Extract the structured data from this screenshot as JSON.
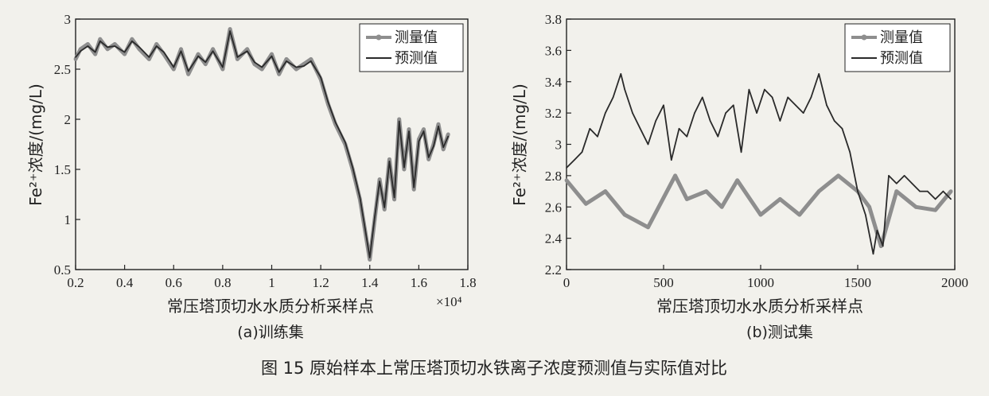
{
  "figure_caption": "图 15    原始样本上常压塔顶切水铁离子浓度预测值与实际值对比",
  "colors": {
    "measured": "#8e8e8e",
    "predicted": "#2a2a2a",
    "axis": "#222222"
  },
  "chart_data": [
    {
      "type": "line",
      "subtitle": "(a)训练集",
      "xlabel": "常压塔顶切水水质分析采样点",
      "ylabel": "Fe²⁺浓度/(mg/L)",
      "x_multiplier": "×10⁴",
      "xlim": [
        0.2,
        1.8
      ],
      "ylim": [
        0.5,
        3
      ],
      "xticks": [
        "0.2",
        "0.4",
        "0.6",
        "0.8",
        "1",
        "1.2",
        "1.4",
        "1.6",
        "1.8"
      ],
      "yticks": [
        "0.5",
        "1",
        "1.5",
        "2",
        "2.5",
        "3"
      ],
      "legend_position": "top-right",
      "series": [
        {
          "name": "测量值",
          "marker": "circle",
          "x": [
            0.2,
            0.22,
            0.25,
            0.28,
            0.3,
            0.33,
            0.36,
            0.4,
            0.43,
            0.46,
            0.5,
            0.53,
            0.56,
            0.6,
            0.63,
            0.66,
            0.7,
            0.73,
            0.76,
            0.8,
            0.83,
            0.86,
            0.9,
            0.93,
            0.96,
            1.0,
            1.03,
            1.06,
            1.1,
            1.13,
            1.16,
            1.2,
            1.23,
            1.26,
            1.3,
            1.33,
            1.36,
            1.38,
            1.4,
            1.42,
            1.44,
            1.46,
            1.48,
            1.5,
            1.52,
            1.54,
            1.56,
            1.58,
            1.6,
            1.62,
            1.64,
            1.66,
            1.68,
            1.7,
            1.72
          ],
          "y": [
            2.6,
            2.7,
            2.75,
            2.65,
            2.8,
            2.7,
            2.75,
            2.65,
            2.8,
            2.7,
            2.6,
            2.75,
            2.65,
            2.5,
            2.7,
            2.45,
            2.65,
            2.55,
            2.7,
            2.5,
            2.9,
            2.6,
            2.7,
            2.55,
            2.5,
            2.65,
            2.45,
            2.6,
            2.5,
            2.55,
            2.6,
            2.4,
            2.15,
            1.95,
            1.75,
            1.5,
            1.2,
            0.9,
            0.6,
            1.0,
            1.4,
            1.1,
            1.6,
            1.2,
            2.0,
            1.5,
            1.9,
            1.3,
            1.8,
            1.9,
            1.6,
            1.75,
            1.95,
            1.7,
            1.85
          ]
        },
        {
          "name": "预测值",
          "marker": "none",
          "x": [
            0.2,
            0.22,
            0.25,
            0.28,
            0.3,
            0.33,
            0.36,
            0.4,
            0.43,
            0.46,
            0.5,
            0.53,
            0.56,
            0.6,
            0.63,
            0.66,
            0.7,
            0.73,
            0.76,
            0.8,
            0.83,
            0.86,
            0.9,
            0.93,
            0.96,
            1.0,
            1.03,
            1.06,
            1.1,
            1.13,
            1.16,
            1.2,
            1.23,
            1.26,
            1.3,
            1.33,
            1.36,
            1.38,
            1.4,
            1.42,
            1.44,
            1.46,
            1.48,
            1.5,
            1.52,
            1.54,
            1.56,
            1.58,
            1.6,
            1.62,
            1.64,
            1.66,
            1.68,
            1.7,
            1.72
          ],
          "y": [
            2.62,
            2.68,
            2.73,
            2.67,
            2.78,
            2.72,
            2.73,
            2.67,
            2.78,
            2.72,
            2.62,
            2.73,
            2.67,
            2.52,
            2.68,
            2.48,
            2.63,
            2.57,
            2.68,
            2.52,
            2.88,
            2.62,
            2.68,
            2.57,
            2.52,
            2.63,
            2.47,
            2.58,
            2.52,
            2.53,
            2.58,
            2.42,
            2.17,
            1.97,
            1.77,
            1.52,
            1.22,
            0.92,
            0.62,
            1.02,
            1.38,
            1.12,
            1.58,
            1.22,
            1.98,
            1.52,
            1.88,
            1.32,
            1.78,
            1.88,
            1.62,
            1.73,
            1.93,
            1.72,
            1.83
          ]
        }
      ]
    },
    {
      "type": "line",
      "subtitle": "(b)测试集",
      "xlabel": "常压塔顶切水水质分析采样点",
      "ylabel": "Fe²⁺浓度/(mg/L)",
      "xlim": [
        0,
        2000
      ],
      "ylim": [
        2.2,
        3.8
      ],
      "xticks": [
        "0",
        "500",
        "1000",
        "1500",
        "2000"
      ],
      "yticks": [
        "2.2",
        "2.4",
        "2.6",
        "2.8",
        "3",
        "3.2",
        "3.4",
        "3.6",
        "3.8"
      ],
      "legend_position": "top-right",
      "series": [
        {
          "name": "测量值",
          "marker": "circle",
          "x": [
            0,
            100,
            200,
            300,
            420,
            560,
            620,
            720,
            800,
            880,
            1000,
            1100,
            1200,
            1300,
            1400,
            1500,
            1560,
            1620,
            1700,
            1800,
            1900,
            1980
          ],
          "y": [
            2.77,
            2.62,
            2.7,
            2.55,
            2.47,
            2.8,
            2.65,
            2.7,
            2.6,
            2.77,
            2.55,
            2.65,
            2.55,
            2.7,
            2.8,
            2.7,
            2.6,
            2.35,
            2.7,
            2.6,
            2.58,
            2.7
          ]
        },
        {
          "name": "预测值",
          "marker": "none",
          "x": [
            0,
            40,
            80,
            120,
            160,
            200,
            240,
            280,
            300,
            340,
            380,
            420,
            460,
            500,
            540,
            580,
            620,
            660,
            700,
            740,
            780,
            820,
            860,
            900,
            940,
            980,
            1020,
            1060,
            1100,
            1140,
            1180,
            1220,
            1260,
            1300,
            1340,
            1380,
            1420,
            1460,
            1500,
            1540,
            1580,
            1600,
            1630,
            1660,
            1700,
            1740,
            1780,
            1820,
            1860,
            1900,
            1940,
            1980
          ],
          "y": [
            2.85,
            2.9,
            2.95,
            3.1,
            3.05,
            3.2,
            3.3,
            3.45,
            3.35,
            3.2,
            3.1,
            3.0,
            3.15,
            3.25,
            2.9,
            3.1,
            3.05,
            3.2,
            3.3,
            3.15,
            3.05,
            3.2,
            3.25,
            2.95,
            3.35,
            3.2,
            3.35,
            3.3,
            3.15,
            3.3,
            3.25,
            3.2,
            3.3,
            3.45,
            3.25,
            3.15,
            3.1,
            2.95,
            2.7,
            2.55,
            2.3,
            2.45,
            2.35,
            2.8,
            2.75,
            2.8,
            2.75,
            2.7,
            2.7,
            2.65,
            2.7,
            2.65
          ]
        }
      ]
    }
  ]
}
